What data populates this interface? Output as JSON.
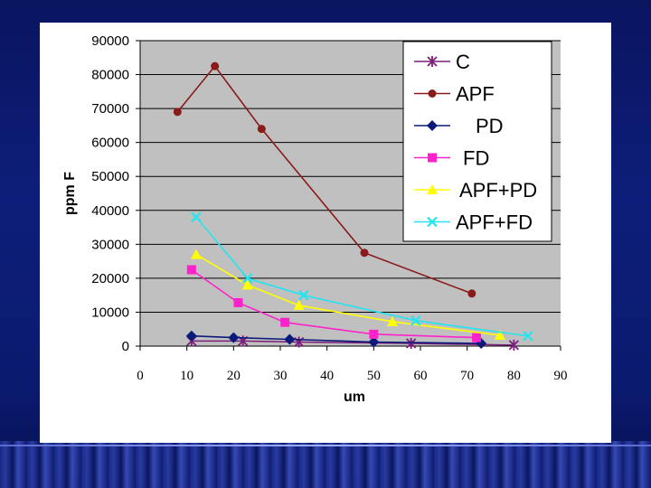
{
  "chart_data": {
    "type": "line",
    "title": "",
    "xlabel": "um",
    "ylabel": "ppm F",
    "xlim": [
      0,
      90
    ],
    "ylim": [
      0,
      90000
    ],
    "xticks": [
      "0",
      "10",
      "20",
      "30",
      "40",
      "50",
      "60",
      "70",
      "80",
      "90"
    ],
    "yticks": [
      "0",
      "10000",
      "20000",
      "30000",
      "40000",
      "50000",
      "60000",
      "70000",
      "80000",
      "90000"
    ],
    "grid": "horizontal",
    "legend_position": "top-right",
    "series": [
      {
        "name": "C",
        "color": "#7a1f7a",
        "marker": "asterisk",
        "x": [
          11,
          22,
          34,
          58,
          80
        ],
        "y": [
          1500,
          1500,
          1200,
          800,
          300
        ]
      },
      {
        "name": "APF",
        "color": "#8b1a1a",
        "marker": "circle",
        "x": [
          8,
          16,
          26,
          48,
          71
        ],
        "y": [
          69000,
          82500,
          64000,
          27500,
          15500
        ]
      },
      {
        "name": "PD",
        "color": "#0a1a7a",
        "marker": "diamond",
        "x": [
          11,
          20,
          32,
          50,
          73
        ],
        "y": [
          3000,
          2500,
          2000,
          1200,
          800
        ]
      },
      {
        "name": "FD",
        "color": "#ff22cc",
        "marker": "square",
        "x": [
          11,
          21,
          31,
          50,
          72
        ],
        "y": [
          22500,
          12800,
          7000,
          3500,
          2500
        ]
      },
      {
        "name": "APF+PD",
        "color": "#ffff00",
        "marker": "triangle",
        "x": [
          12,
          23,
          34,
          54,
          77
        ],
        "y": [
          27000,
          18000,
          12000,
          7200,
          3200
        ]
      },
      {
        "name": "APF+FD",
        "color": "#22e5f0",
        "marker": "x",
        "x": [
          12,
          23,
          35,
          59,
          83
        ],
        "y": [
          38000,
          20000,
          15000,
          7500,
          3000
        ]
      }
    ]
  }
}
